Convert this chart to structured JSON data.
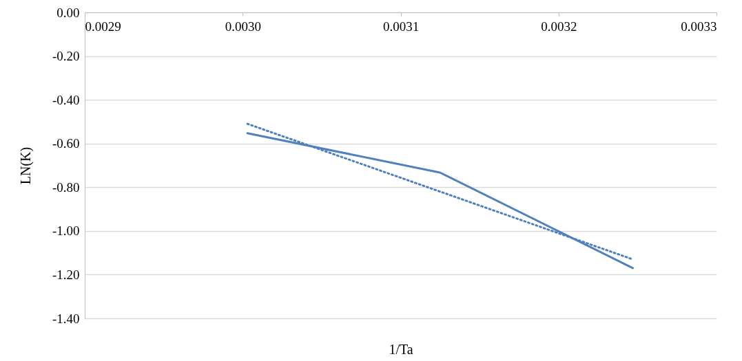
{
  "chart_data": {
    "type": "line",
    "xlabel": "1/Ta",
    "ylabel": "LN(K)",
    "xlim": [
      0.0029,
      0.0033
    ],
    "ylim": [
      -1.4,
      0
    ],
    "xticks": [
      0.0029,
      {
        "value": 0.003,
        "label": "0.0030"
      },
      0.0031,
      0.0032,
      0.0033
    ],
    "yticks": [
      {
        "value": 0,
        "label": "0.00"
      },
      {
        "value": -0.2,
        "label": "-0.20"
      },
      {
        "value": -0.4,
        "label": "-0.40"
      },
      {
        "value": -0.6,
        "label": "-0.60"
      },
      {
        "value": -0.8,
        "label": "-0.80"
      },
      {
        "value": -1,
        "label": "-1.00"
      },
      {
        "value": -1.2,
        "label": "-1.20"
      },
      {
        "value": -1.4,
        "label": "-1.40"
      }
    ],
    "grid": "y",
    "marker": "none",
    "series": [
      {
        "color": "#4f81bd",
        "line_style": "solid",
        "x": [
          0.003003,
          0.003125,
          0.003247
        ],
        "values": [
          -0.553,
          -0.733,
          -1.17
        ]
      },
      {
        "color": "#4f81bd",
        "line_style": "dotted",
        "x": [
          0.003003,
          0.003247
        ],
        "values": [
          -0.51,
          -1.13
        ]
      }
    ]
  }
}
